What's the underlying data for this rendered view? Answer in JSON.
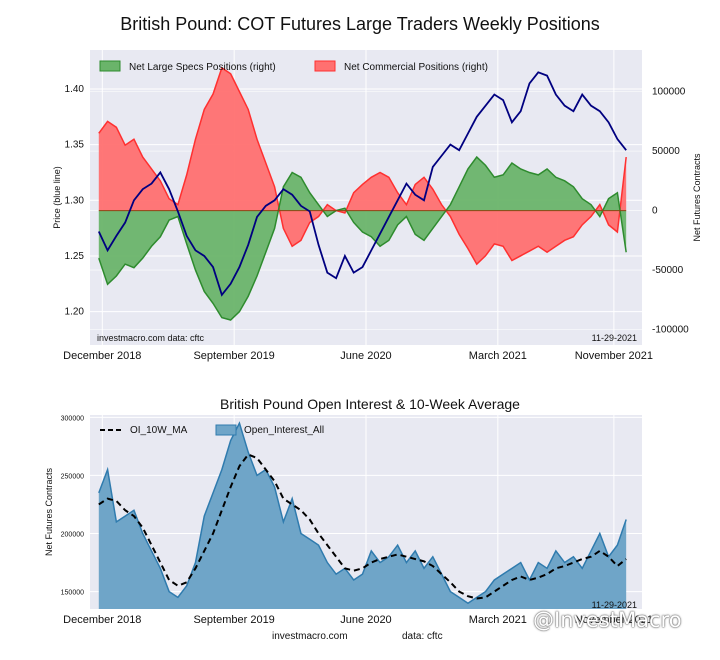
{
  "title": "British Pound: COT Futures Large Traders Weekly Positions",
  "footer": {
    "source": "investmacro.com",
    "data": "data: cftc"
  },
  "watermark": "@InvestMacro",
  "chart_data": [
    {
      "type": "line+area",
      "title": "British Pound: COT Futures Large Traders Weekly Positions",
      "ylabel_left": "Price (blue line)",
      "ylabel_right": "Net Futures Contracts",
      "ylim_left": [
        1.17,
        1.435
      ],
      "ylim_right": [
        -113000,
        135000
      ],
      "yticks_left": [
        1.2,
        1.25,
        1.3,
        1.35,
        1.4
      ],
      "yticks_right": [
        -100000,
        -50000,
        0,
        50000,
        100000
      ],
      "xlim": [
        2018.85,
        2021.99
      ],
      "xticks": [
        {
          "label": "December 2018",
          "value": 2018.92
        },
        {
          "label": "September 2019",
          "value": 2019.67
        },
        {
          "label": "June 2020",
          "value": 2020.42
        },
        {
          "label": "March 2021",
          "value": 2021.17
        },
        {
          "label": "November 2021",
          "value": 2021.83
        }
      ],
      "legend": [
        "Net Large Specs Positions (right)",
        "Net Commercial Positions (right)"
      ],
      "legend_position": "top-left",
      "colors": {
        "specs": "#2e8b2e",
        "specs_fill": "#6ab46a",
        "comm": "#ff3030",
        "comm_fill": "#ff7070",
        "price": "#000080"
      },
      "note_left": "investmacro.com   data: cftc",
      "note_right": "11-29-2021",
      "x": [
        2018.9,
        2018.95,
        2019.0,
        2019.05,
        2019.1,
        2019.15,
        2019.2,
        2019.25,
        2019.3,
        2019.35,
        2019.4,
        2019.45,
        2019.5,
        2019.55,
        2019.6,
        2019.65,
        2019.7,
        2019.75,
        2019.8,
        2019.85,
        2019.9,
        2019.95,
        2020.0,
        2020.05,
        2020.1,
        2020.15,
        2020.2,
        2020.25,
        2020.3,
        2020.35,
        2020.4,
        2020.45,
        2020.5,
        2020.55,
        2020.6,
        2020.65,
        2020.7,
        2020.75,
        2020.8,
        2020.85,
        2020.9,
        2020.95,
        2021.0,
        2021.05,
        2021.1,
        2021.15,
        2021.2,
        2021.25,
        2021.3,
        2021.35,
        2021.4,
        2021.45,
        2021.5,
        2021.55,
        2021.6,
        2021.65,
        2021.7,
        2021.75,
        2021.8,
        2021.85,
        2021.9
      ],
      "specs": [
        -40000,
        -62000,
        -55000,
        -45000,
        -48000,
        -40000,
        -30000,
        -22000,
        -8000,
        -5000,
        -28000,
        -50000,
        -68000,
        -78000,
        -90000,
        -92000,
        -85000,
        -72000,
        -55000,
        -35000,
        -15000,
        20000,
        32000,
        28000,
        15000,
        5000,
        -5000,
        0,
        2000,
        -10000,
        -18000,
        -22000,
        -30000,
        -25000,
        -12000,
        -5000,
        -20000,
        -25000,
        -15000,
        -5000,
        5000,
        20000,
        35000,
        45000,
        38000,
        28000,
        30000,
        40000,
        35000,
        32000,
        30000,
        35000,
        28000,
        25000,
        20000,
        10000,
        5000,
        -5000,
        10000,
        15000,
        -35000
      ],
      "commercial": [
        65000,
        75000,
        70000,
        55000,
        60000,
        45000,
        35000,
        25000,
        10000,
        5000,
        30000,
        60000,
        85000,
        98000,
        120000,
        115000,
        100000,
        85000,
        60000,
        40000,
        20000,
        -15000,
        -30000,
        -25000,
        -10000,
        -5000,
        5000,
        0,
        -2000,
        15000,
        22000,
        28000,
        32000,
        28000,
        15000,
        5000,
        22000,
        28000,
        18000,
        5000,
        -5000,
        -20000,
        -32000,
        -45000,
        -38000,
        -28000,
        -30000,
        -42000,
        -38000,
        -34000,
        -30000,
        -35000,
        -30000,
        -25000,
        -22000,
        -12000,
        -5000,
        5000,
        -12000,
        -18000,
        45000
      ],
      "price": [
        1.272,
        1.255,
        1.268,
        1.28,
        1.3,
        1.31,
        1.315,
        1.325,
        1.31,
        1.29,
        1.268,
        1.255,
        1.25,
        1.24,
        1.215,
        1.225,
        1.24,
        1.26,
        1.285,
        1.295,
        1.3,
        1.31,
        1.305,
        1.295,
        1.29,
        1.26,
        1.235,
        1.23,
        1.25,
        1.235,
        1.24,
        1.255,
        1.27,
        1.285,
        1.3,
        1.315,
        1.305,
        1.3,
        1.33,
        1.34,
        1.35,
        1.345,
        1.36,
        1.375,
        1.385,
        1.395,
        1.39,
        1.37,
        1.38,
        1.405,
        1.415,
        1.412,
        1.395,
        1.385,
        1.38,
        1.395,
        1.385,
        1.38,
        1.37,
        1.355,
        1.345
      ]
    },
    {
      "type": "area+line",
      "title": "British Pound Open Interest & 10-Week Average",
      "ylabel": "Net Futures Contracts",
      "ylim": [
        135000,
        302000
      ],
      "yticks": [
        150000,
        200000,
        250000,
        300000
      ],
      "xlim": [
        2018.85,
        2021.99
      ],
      "xticks": [
        {
          "label": "December 2018",
          "value": 2018.92
        },
        {
          "label": "September 2019",
          "value": 2019.67
        },
        {
          "label": "June 2020",
          "value": 2020.42
        },
        {
          "label": "March 2021",
          "value": 2021.17
        },
        {
          "label": "November 2021",
          "value": 2021.83
        }
      ],
      "legend": [
        "OI_10W_MA",
        "Open_Interest_All"
      ],
      "legend_position": "top-left",
      "colors": {
        "oi": "#2f7bae",
        "oi_fill": "#6fa5c8",
        "ma": "#000000"
      },
      "note_right": "11-29-2021",
      "x": [
        2018.9,
        2018.95,
        2019.0,
        2019.05,
        2019.1,
        2019.15,
        2019.2,
        2019.25,
        2019.3,
        2019.35,
        2019.4,
        2019.45,
        2019.5,
        2019.55,
        2019.6,
        2019.65,
        2019.7,
        2019.75,
        2019.8,
        2019.85,
        2019.9,
        2019.95,
        2020.0,
        2020.05,
        2020.1,
        2020.15,
        2020.2,
        2020.25,
        2020.3,
        2020.35,
        2020.4,
        2020.45,
        2020.5,
        2020.55,
        2020.6,
        2020.65,
        2020.7,
        2020.75,
        2020.8,
        2020.85,
        2020.9,
        2020.95,
        2021.0,
        2021.05,
        2021.1,
        2021.15,
        2021.2,
        2021.25,
        2021.3,
        2021.35,
        2021.4,
        2021.45,
        2021.5,
        2021.55,
        2021.6,
        2021.65,
        2021.7,
        2021.75,
        2021.8,
        2021.85,
        2021.9
      ],
      "open_interest": [
        235000,
        255000,
        210000,
        215000,
        220000,
        200000,
        185000,
        170000,
        150000,
        145000,
        155000,
        175000,
        215000,
        235000,
        255000,
        280000,
        295000,
        270000,
        250000,
        255000,
        240000,
        210000,
        230000,
        200000,
        195000,
        190000,
        175000,
        165000,
        170000,
        160000,
        165000,
        185000,
        175000,
        180000,
        190000,
        175000,
        185000,
        170000,
        180000,
        165000,
        150000,
        145000,
        140000,
        145000,
        150000,
        160000,
        165000,
        170000,
        175000,
        160000,
        175000,
        170000,
        185000,
        175000,
        180000,
        170000,
        185000,
        200000,
        180000,
        190000,
        212000
      ],
      "ma_10w": [
        225000,
        230000,
        228000,
        220000,
        215000,
        205000,
        190000,
        175000,
        160000,
        155000,
        158000,
        170000,
        185000,
        200000,
        220000,
        240000,
        258000,
        268000,
        265000,
        255000,
        245000,
        230000,
        225000,
        220000,
        212000,
        200000,
        190000,
        180000,
        170000,
        168000,
        170000,
        175000,
        178000,
        180000,
        182000,
        180000,
        178000,
        176000,
        172000,
        165000,
        158000,
        150000,
        146000,
        144000,
        145000,
        150000,
        155000,
        160000,
        163000,
        160000,
        162000,
        165000,
        170000,
        172000,
        175000,
        178000,
        180000,
        185000,
        180000,
        172000,
        178000
      ]
    }
  ]
}
